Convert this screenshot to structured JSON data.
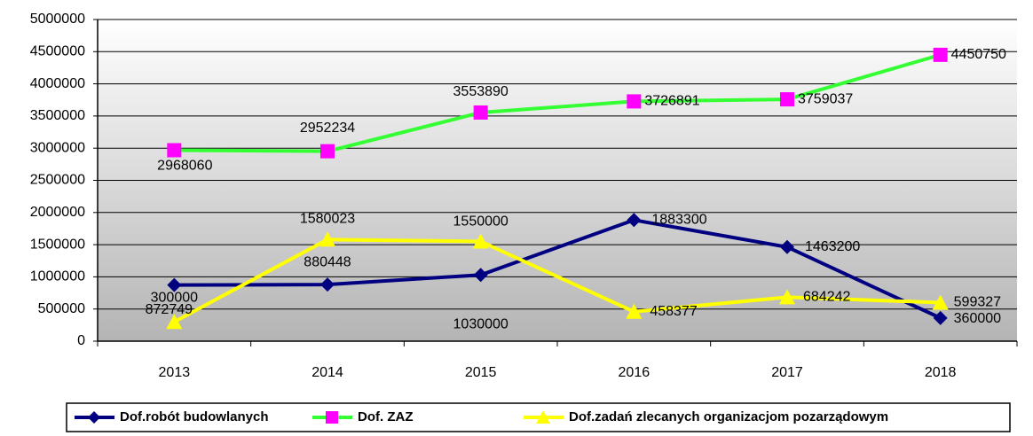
{
  "chart_data": {
    "type": "line",
    "categories": [
      "2013",
      "2014",
      "2015",
      "2016",
      "2017",
      "2018"
    ],
    "series": [
      {
        "name": "Dof.robót budowlanych",
        "color": "#000080",
        "marker_color": "#000080",
        "marker": "diamond",
        "values": [
          872749,
          880448,
          1030000,
          1883300,
          1463200,
          360000
        ]
      },
      {
        "name": "Dof. ZAZ",
        "color": "#33ff33",
        "marker_color": "#ff00ff",
        "marker": "square",
        "values": [
          2968060,
          2952234,
          3553890,
          3726891,
          3759037,
          4450750
        ]
      },
      {
        "name": "Dof.zadań zlecanych organizacjom pozarządowym",
        "color": "#ffff00",
        "marker_color": "#ffff00",
        "marker": "triangle",
        "values": [
          300000,
          1580023,
          1550000,
          458377,
          684242,
          599327
        ]
      }
    ],
    "ylim": [
      0,
      5000000
    ],
    "yticks": [
      0,
      500000,
      1000000,
      1500000,
      2000000,
      2500000,
      3000000,
      3500000,
      4000000,
      4500000,
      5000000
    ],
    "grid": true,
    "legend": "bottom"
  }
}
